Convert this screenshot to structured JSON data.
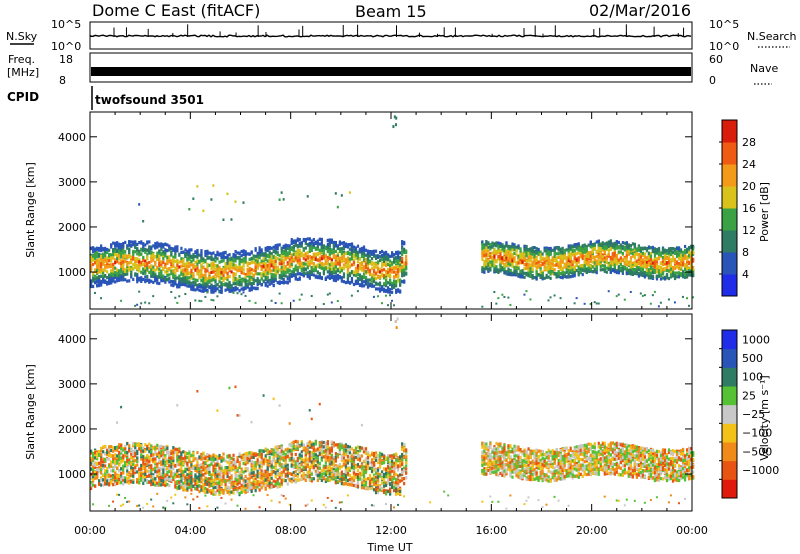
{
  "header": {
    "station": "Dome C East (fitACF)",
    "beam": "Beam 15",
    "date": "02/Mar/2016"
  },
  "top_panels": {
    "nsky_label": "N.Sky",
    "nsearch_label": "N.Search",
    "nsky_ticks": [
      "10^5",
      "10^0"
    ],
    "freq_label_1": "Freq.",
    "freq_label_2": "[MHz]",
    "freq_ticks": [
      "18",
      "8"
    ],
    "nave_label": "Nave",
    "nave_ticks": [
      "60",
      "0"
    ],
    "cpid_label": "CPID",
    "cpid_value": "twofsound 3501"
  },
  "chart_data": [
    {
      "type": "heatmap",
      "name": "power",
      "xlabel": "Time UT",
      "ylabel": "Slant Range [km]",
      "x_ticks": [
        "00:00",
        "04:00",
        "08:00",
        "12:00",
        "16:00",
        "20:00",
        "00:00"
      ],
      "x_range_hours": [
        0,
        24
      ],
      "y_ticks": [
        1000,
        2000,
        3000,
        4000
      ],
      "y_range_km": [
        180,
        4550
      ],
      "colorbar_label": "Power [dB]",
      "colorbar_ticks": [
        4,
        8,
        12,
        16,
        20,
        24,
        28
      ],
      "colorbar_range": [
        0,
        32
      ],
      "colors": [
        "#1f2de8",
        "#2a55b8",
        "#2f7b64",
        "#3aa244",
        "#d9c21b",
        "#f39a18",
        "#ef5b12",
        "#d81d0a"
      ]
    },
    {
      "type": "heatmap",
      "name": "velocity",
      "xlabel": "Time UT",
      "ylabel": "Slant Range [km]",
      "x_ticks": [
        "00:00",
        "04:00",
        "08:00",
        "12:00",
        "16:00",
        "20:00",
        "00:00"
      ],
      "x_range_hours": [
        0,
        24
      ],
      "y_ticks": [
        1000,
        2000,
        3000,
        4000
      ],
      "y_range_km": [
        180,
        4550
      ],
      "colorbar_label": "Velocity [m s⁻¹]",
      "colorbar_ticks": [
        "1000",
        "500",
        "100",
        "25",
        "−25",
        "−100",
        "−500",
        "−1000"
      ],
      "colors": [
        "#1f2de8",
        "#2a55b8",
        "#2f7b64",
        "#55c235",
        "#c8c8c8",
        "#f3c21a",
        "#f08a18",
        "#e85412",
        "#e01a0a"
      ]
    }
  ]
}
